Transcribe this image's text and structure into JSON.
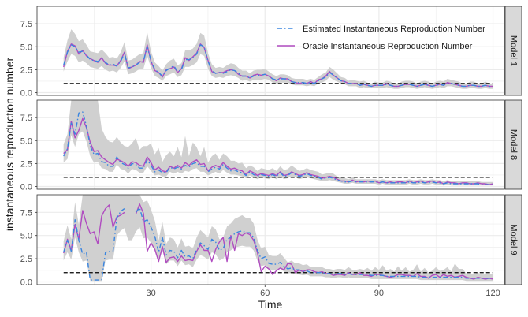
{
  "ylabel": "instantaneous reproduction number",
  "xlabel": "Time",
  "legend": {
    "estimated": "Estimated Instantaneous Reproduction Number",
    "oracle": "Oracle Instantaneous Reproduction Number"
  },
  "colors": {
    "estimated": "#3a85e0",
    "oracle": "#b04cc0",
    "band": "#d0d0d0",
    "reference": "#000000",
    "strip": "#d9d9d9",
    "grid": "#ebebeb"
  },
  "chart_data": [
    {
      "type": "line",
      "strip": "Model 1",
      "xlim": [
        0,
        123
      ],
      "ylim": [
        -0.3,
        9.4
      ],
      "xticks": [
        30,
        60,
        90,
        120
      ],
      "yticks": [
        0.0,
        2.5,
        5.0,
        7.5
      ],
      "ytick_labels": [
        "0.0",
        "2.5",
        "5.0",
        "7.5"
      ],
      "reference_line": 1.0,
      "x_start": 7,
      "oracle": [
        2.8,
        4.5,
        5.3,
        5.1,
        4.2,
        4.6,
        4.0,
        3.7,
        3.5,
        3.3,
        3.8,
        3.2,
        3.0,
        3.0,
        2.9,
        3.5,
        4.4,
        2.6,
        2.8,
        3.0,
        3.4,
        3.3,
        5.2,
        3.4,
        2.4,
        2.2,
        1.7,
        2.5,
        2.6,
        2.8,
        2.2,
        2.6,
        3.8,
        3.5,
        3.9,
        4.3,
        5.3,
        4.9,
        3.5,
        2.3,
        2.1,
        2.2,
        2.2,
        2.4,
        2.5,
        2.4,
        2.0,
        1.8,
        1.8,
        1.6,
        1.9,
        2.0,
        1.9,
        2.0,
        1.8,
        1.5,
        1.3,
        1.6,
        1.5,
        1.5,
        1.2,
        1.1,
        1.0,
        1.1,
        1.0,
        1.2,
        1.0,
        1.4,
        1.5,
        1.8,
        2.3,
        1.9,
        1.6,
        1.3,
        1.2,
        1.0,
        1.0,
        1.0,
        0.8,
        0.9,
        0.8,
        0.7,
        0.8,
        0.8,
        0.8,
        1.0,
        0.8,
        0.7,
        0.7,
        0.8,
        0.9,
        0.9,
        0.8,
        0.7,
        0.8,
        0.9,
        0.8,
        0.7,
        0.8,
        0.9,
        0.8,
        1.1,
        1.0,
        0.9,
        0.8,
        0.7,
        0.7,
        0.8,
        0.8,
        0.7,
        0.7,
        0.8,
        0.7,
        0.7
      ],
      "estimated": [
        3.0,
        4.4,
        5.2,
        5.0,
        4.4,
        4.5,
        4.1,
        3.6,
        3.5,
        3.4,
        3.7,
        3.3,
        3.0,
        3.1,
        2.9,
        3.4,
        4.3,
        2.7,
        2.8,
        3.0,
        3.3,
        3.4,
        5.0,
        3.5,
        2.5,
        2.2,
        1.8,
        2.4,
        2.7,
        2.9,
        2.3,
        2.5,
        3.6,
        3.6,
        3.8,
        4.2,
        5.2,
        5.0,
        3.4,
        2.4,
        2.1,
        2.2,
        2.1,
        2.3,
        2.5,
        2.4,
        2.1,
        1.8,
        1.8,
        1.6,
        1.8,
        1.9,
        1.9,
        2.0,
        1.8,
        1.5,
        1.4,
        1.5,
        1.5,
        1.5,
        1.2,
        1.1,
        1.1,
        1.1,
        1.0,
        1.1,
        1.0,
        1.3,
        1.5,
        1.7,
        2.2,
        1.9,
        1.6,
        1.3,
        1.2,
        1.0,
        1.0,
        1.0,
        0.8,
        0.9,
        0.8,
        0.7,
        0.8,
        0.8,
        0.8,
        0.9,
        0.8,
        0.7,
        0.7,
        0.8,
        0.9,
        0.9,
        0.8,
        0.7,
        0.8,
        0.9,
        0.8,
        0.7,
        0.8,
        0.9,
        0.8,
        1.0,
        1.0,
        0.9,
        0.8,
        0.7,
        0.7,
        0.8,
        0.8,
        0.7,
        0.7,
        0.8,
        0.7,
        0.7
      ],
      "band_lower": [
        2.3,
        3.4,
        4.2,
        4.0,
        3.3,
        3.5,
        3.2,
        2.8,
        2.7,
        2.6,
        2.9,
        2.5,
        2.3,
        2.4,
        2.2,
        2.7,
        3.4,
        2.0,
        2.1,
        2.3,
        2.6,
        2.6,
        4.0,
        2.7,
        1.8,
        1.6,
        1.3,
        1.8,
        2.0,
        2.2,
        1.7,
        1.9,
        2.8,
        2.8,
        3.0,
        3.3,
        4.2,
        4.0,
        2.6,
        1.8,
        1.6,
        1.7,
        1.6,
        1.8,
        1.9,
        1.8,
        1.6,
        1.3,
        1.4,
        1.2,
        1.4,
        1.4,
        1.4,
        1.5,
        1.4,
        1.1,
        1.0,
        1.1,
        1.1,
        1.1,
        0.9,
        0.8,
        0.8,
        0.8,
        0.7,
        0.8,
        0.7,
        1.0,
        1.1,
        1.3,
        1.7,
        1.4,
        1.2,
        1.0,
        0.9,
        0.7,
        0.7,
        0.7,
        0.5,
        0.6,
        0.5,
        0.5,
        0.5,
        0.5,
        0.5,
        0.6,
        0.5,
        0.4,
        0.4,
        0.5,
        0.6,
        0.6,
        0.5,
        0.4,
        0.5,
        0.6,
        0.5,
        0.4,
        0.5,
        0.6,
        0.5,
        0.7,
        0.7,
        0.6,
        0.5,
        0.4,
        0.4,
        0.5,
        0.5,
        0.4,
        0.4,
        0.5,
        0.4,
        0.4
      ],
      "band_upper": [
        3.8,
        5.7,
        6.9,
        6.4,
        5.6,
        5.8,
        5.2,
        4.5,
        4.4,
        4.3,
        4.7,
        4.3,
        3.8,
        3.9,
        3.7,
        4.4,
        5.5,
        3.5,
        3.6,
        3.9,
        4.2,
        4.3,
        6.6,
        4.5,
        3.3,
        2.9,
        2.4,
        3.1,
        3.5,
        3.7,
        3.0,
        3.2,
        4.6,
        4.6,
        4.8,
        5.3,
        6.5,
        6.2,
        4.3,
        3.1,
        2.7,
        2.8,
        2.7,
        3.0,
        3.2,
        3.1,
        2.7,
        2.4,
        2.4,
        2.1,
        2.4,
        2.5,
        2.5,
        2.6,
        2.3,
        2.0,
        1.8,
        2.0,
        2.0,
        1.9,
        1.6,
        1.5,
        1.5,
        1.5,
        1.4,
        1.5,
        1.4,
        1.7,
        2.0,
        2.2,
        2.8,
        2.5,
        2.1,
        1.7,
        1.6,
        1.3,
        1.4,
        1.3,
        1.2,
        1.3,
        1.1,
        1.0,
        1.2,
        1.1,
        1.1,
        1.3,
        1.2,
        1.0,
        1.0,
        1.2,
        1.3,
        1.3,
        1.2,
        1.0,
        1.2,
        1.3,
        1.2,
        1.0,
        1.2,
        1.3,
        1.2,
        1.5,
        1.4,
        1.3,
        1.2,
        1.0,
        1.0,
        1.2,
        1.2,
        1.0,
        1.0,
        1.2,
        1.0,
        1.0
      ]
    },
    {
      "type": "line",
      "strip": "Model 8",
      "xlim": [
        0,
        123
      ],
      "ylim": [
        -0.3,
        9.4
      ],
      "xticks": [
        30,
        60,
        90,
        120
      ],
      "yticks": [
        0.0,
        2.5,
        5.0,
        7.5
      ],
      "ytick_labels": [
        "0.0",
        "2.5",
        "5.0",
        "7.5"
      ],
      "reference_line": 1.0,
      "x_start": 7,
      "oracle": [
        3.6,
        4.0,
        7.1,
        5.3,
        6.1,
        7.4,
        6.4,
        4.8,
        3.8,
        3.9,
        3.2,
        2.9,
        2.6,
        2.4,
        3.0,
        2.8,
        2.6,
        2.2,
        2.7,
        2.6,
        2.3,
        2.2,
        3.2,
        2.6,
        1.8,
        2.1,
        1.7,
        1.6,
        2.2,
        2.0,
        2.3,
        2.0,
        2.6,
        2.3,
        2.7,
        2.9,
        2.4,
        2.5,
        1.7,
        2.1,
        2.3,
        2.1,
        2.6,
        2.2,
        1.9,
        2.0,
        1.8,
        1.7,
        1.3,
        1.7,
        1.5,
        1.2,
        1.4,
        1.3,
        1.2,
        1.4,
        1.2,
        1.6,
        1.2,
        1.3,
        1.6,
        1.4,
        1.2,
        1.3,
        1.5,
        1.3,
        1.2,
        1.1,
        0.9,
        1.0,
        1.1,
        1.0,
        0.8,
        0.6,
        0.6,
        0.5,
        0.7,
        0.5,
        0.6,
        0.5,
        0.6,
        0.5,
        0.6,
        0.4,
        0.5,
        0.4,
        0.5,
        0.4,
        0.5,
        0.5,
        0.4,
        0.6,
        0.4,
        0.5,
        0.6,
        0.4,
        0.5,
        0.6,
        0.4,
        0.5,
        0.3,
        0.5,
        0.4,
        0.4,
        0.3,
        0.4,
        0.4,
        0.3,
        0.3,
        0.4,
        0.3,
        0.3,
        0.2,
        0.3
      ],
      "estimated": [
        3.3,
        4.1,
        6.9,
        5.7,
        8.0,
        8.1,
        6.6,
        4.4,
        3.5,
        3.6,
        2.7,
        2.6,
        2.2,
        2.2,
        3.2,
        2.6,
        2.4,
        2.0,
        2.5,
        2.4,
        2.0,
        2.0,
        2.9,
        2.3,
        1.6,
        1.8,
        1.5,
        1.5,
        2.1,
        1.9,
        2.1,
        1.9,
        2.3,
        2.1,
        2.5,
        2.6,
        2.2,
        2.2,
        1.6,
        1.9,
        2.1,
        1.9,
        2.4,
        2.0,
        1.7,
        1.8,
        1.6,
        1.5,
        1.2,
        1.6,
        1.3,
        1.1,
        1.3,
        1.2,
        1.1,
        1.3,
        1.1,
        1.5,
        1.1,
        1.2,
        1.5,
        1.3,
        1.1,
        1.2,
        1.4,
        1.2,
        1.1,
        1.0,
        0.8,
        0.9,
        1.0,
        0.9,
        0.7,
        0.6,
        0.5,
        0.5,
        0.6,
        0.5,
        0.5,
        0.5,
        0.5,
        0.5,
        0.5,
        0.4,
        0.5,
        0.4,
        0.4,
        0.4,
        0.4,
        0.4,
        0.4,
        0.5,
        0.4,
        0.4,
        0.5,
        0.4,
        0.4,
        0.5,
        0.4,
        0.4,
        0.3,
        0.4,
        0.3,
        0.3,
        0.3,
        0.3,
        0.3,
        0.3,
        0.3,
        0.3,
        0.2,
        0.2,
        0.2,
        0.2
      ],
      "band_lower": [
        2.6,
        3.0,
        5.6,
        4.3,
        5.7,
        6.0,
        4.9,
        3.3,
        2.6,
        2.7,
        2.0,
        1.9,
        1.6,
        1.6,
        2.4,
        1.9,
        1.8,
        1.4,
        1.9,
        1.8,
        1.5,
        1.5,
        2.2,
        1.7,
        1.2,
        1.3,
        1.1,
        1.1,
        1.6,
        1.4,
        1.6,
        1.4,
        1.7,
        1.6,
        1.9,
        2.0,
        1.6,
        1.6,
        1.2,
        1.4,
        1.6,
        1.4,
        1.8,
        1.5,
        1.3,
        1.3,
        1.2,
        1.1,
        0.9,
        1.2,
        1.0,
        0.8,
        1.0,
        0.9,
        0.8,
        1.0,
        0.8,
        1.1,
        0.8,
        0.9,
        1.1,
        1.0,
        0.8,
        0.9,
        1.0,
        0.9,
        0.8,
        0.7,
        0.6,
        0.6,
        0.7,
        0.6,
        0.5,
        0.4,
        0.3,
        0.3,
        0.4,
        0.3,
        0.3,
        0.3,
        0.3,
        0.3,
        0.3,
        0.2,
        0.3,
        0.2,
        0.2,
        0.2,
        0.2,
        0.2,
        0.2,
        0.3,
        0.2,
        0.2,
        0.3,
        0.2,
        0.2,
        0.3,
        0.2,
        0.2,
        0.1,
        0.2,
        0.1,
        0.1,
        0.1,
        0.1,
        0.1,
        0.1,
        0.1,
        0.1,
        0.1,
        0.1,
        0.1,
        0.1
      ],
      "band_upper": [
        4.6,
        5.7,
        9.4,
        9.4,
        9.4,
        9.4,
        9.4,
        9.4,
        9.4,
        9.4,
        6.3,
        5.4,
        4.9,
        4.8,
        5.4,
        4.8,
        4.4,
        4.3,
        4.7,
        5.3,
        4.0,
        4.4,
        4.4,
        4.7,
        3.5,
        4.2,
        2.7,
        3.4,
        3.8,
        3.3,
        4.3,
        3.2,
        5.5,
        3.3,
        4.8,
        4.3,
        3.3,
        4.3,
        2.6,
        3.3,
        3.6,
        2.9,
        3.6,
        3.3,
        2.8,
        2.8,
        2.5,
        2.6,
        2.0,
        2.3,
        2.1,
        1.7,
        2.0,
        1.9,
        1.8,
        2.0,
        1.7,
        2.2,
        1.8,
        1.9,
        2.3,
        2.0,
        1.7,
        1.8,
        2.0,
        1.8,
        1.7,
        1.6,
        1.3,
        1.4,
        1.5,
        1.4,
        1.1,
        1.0,
        0.9,
        0.8,
        1.0,
        0.8,
        0.8,
        0.8,
        0.8,
        0.8,
        0.8,
        0.7,
        0.8,
        0.7,
        0.7,
        0.7,
        0.7,
        0.7,
        0.7,
        0.8,
        0.7,
        0.7,
        0.8,
        0.7,
        0.7,
        0.8,
        0.7,
        0.7,
        0.6,
        0.7,
        0.6,
        0.6,
        0.6,
        0.6,
        0.6,
        0.6,
        0.6,
        0.6,
        0.5,
        0.5,
        0.5,
        0.5
      ]
    },
    {
      "type": "line",
      "strip": "Model 9",
      "xlim": [
        0,
        123
      ],
      "ylim": [
        -0.3,
        9.4
      ],
      "xticks": [
        30,
        60,
        90,
        120
      ],
      "yticks": [
        0.0,
        2.5,
        5.0,
        7.5
      ],
      "ytick_labels": [
        "0.0",
        "2.5",
        "5.0",
        "7.5"
      ],
      "reference_line": 1.0,
      "x_start": 7,
      "oracle": [
        3.1,
        4.6,
        3.4,
        6.2,
        4.6,
        7.7,
        6.3,
        5.2,
        5.4,
        4.1,
        7.1,
        7.9,
        8.3,
        5.9,
        7.0,
        7.2,
        7.5,
        null,
        null,
        7.3,
        8.4,
        7.4,
        3.3,
        4.2,
        3.5,
        2.2,
        3.8,
        2.1,
        2.6,
        2.7,
        2.2,
        2.8,
        2.3,
        2.4,
        2.3,
        3.3,
        4.0,
        3.4,
        3.4,
        2.2,
        3.5,
        4.3,
        4.8,
        2.2,
        5.0,
        3.4,
        5.2,
        5.0,
        5.3,
        5.1,
        4.5,
        3.2,
        1.1,
        1.7,
        1.4,
        0.8,
        1.2,
        1.5,
        1.3,
        2.0,
        1.9,
        1.0,
        1.3,
        1.1,
        1.3,
        1.3,
        1.1,
        1.0,
        1.1,
        0.9,
        0.9,
        0.7,
        0.8,
        0.8,
        0.7,
        1.0,
        0.8,
        0.8,
        1.0,
        0.7,
        0.7,
        0.6,
        0.8,
        0.8,
        0.7,
        0.6,
        0.5,
        0.6,
        0.8,
        0.8,
        0.7,
        0.7,
        0.6,
        0.9,
        0.6,
        0.6,
        0.4,
        0.7,
        0.8,
        0.5,
        0.8,
        0.6,
        0.7,
        0.5,
        0.6,
        0.7,
        0.5,
        0.4,
        0.3,
        0.5,
        0.4,
        0.3,
        0.4,
        0.3
      ],
      "estimated": [
        3.2,
        4.5,
        3.3,
        6.7,
        4.5,
        3.0,
        3.2,
        0.2,
        0.2,
        0.2,
        0.2,
        3.2,
        3.3,
        3.3,
        6.9,
        7.6,
        7.9,
        null,
        null,
        7.5,
        8.0,
        6.5,
        6.7,
        5.9,
        4.9,
        3.2,
        4.8,
        2.9,
        3.4,
        3.3,
        2.6,
        3.4,
        2.7,
        2.8,
        2.5,
        3.5,
        4.2,
        3.9,
        3.5,
        4.6,
        4.3,
        3.4,
        3.6,
        4.6,
        4.8,
        5.2,
        5.4,
        5.5,
        5.3,
        5.3,
        4.8,
        3.4,
        2.5,
        2.7,
        2.0,
        1.9,
        1.9,
        2.1,
        1.7,
        1.4,
        1.5,
        1.3,
        1.3,
        1.1,
        1.2,
        1.0,
        1.0,
        1.0,
        1.0,
        0.9,
        0.9,
        0.8,
        0.9,
        0.9,
        0.8,
        0.9,
        0.8,
        0.8,
        0.8,
        0.8,
        0.8,
        0.7,
        0.7,
        0.7,
        0.7,
        0.6,
        0.6,
        0.6,
        0.6,
        0.6,
        0.6,
        0.6,
        0.6,
        0.6,
        0.5,
        0.5,
        0.5,
        0.5,
        0.5,
        0.5,
        0.5,
        0.5,
        0.5,
        0.5,
        0.5,
        0.5,
        0.4,
        0.4,
        0.4,
        0.4,
        0.4,
        0.4,
        0.4,
        0.4
      ],
      "band_lower": [
        2.3,
        3.2,
        2.4,
        4.8,
        3.2,
        2.2,
        2.3,
        0.1,
        0.1,
        0.1,
        0.1,
        2.3,
        2.4,
        2.4,
        5.0,
        5.5,
        5.8,
        4.5,
        4.5,
        5.4,
        5.9,
        4.7,
        4.8,
        4.2,
        3.5,
        2.2,
        3.4,
        1.9,
        2.3,
        2.3,
        1.7,
        2.3,
        1.8,
        1.9,
        1.6,
        2.4,
        2.9,
        2.7,
        2.4,
        3.2,
        3.0,
        2.3,
        2.5,
        3.2,
        3.4,
        3.7,
        3.8,
        3.9,
        3.8,
        3.8,
        3.4,
        2.3,
        1.7,
        1.8,
        1.3,
        1.3,
        1.3,
        1.4,
        1.1,
        0.9,
        1.0,
        0.8,
        0.8,
        0.7,
        0.8,
        0.6,
        0.6,
        0.6,
        0.6,
        0.5,
        0.5,
        0.4,
        0.5,
        0.5,
        0.4,
        0.5,
        0.4,
        0.4,
        0.4,
        0.4,
        0.4,
        0.3,
        0.3,
        0.3,
        0.3,
        0.3,
        0.3,
        0.3,
        0.3,
        0.3,
        0.3,
        0.3,
        0.3,
        0.3,
        0.2,
        0.2,
        0.2,
        0.2,
        0.2,
        0.2,
        0.2,
        0.2,
        0.2,
        0.2,
        0.2,
        0.2,
        0.1,
        0.1,
        0.1,
        0.1,
        0.1,
        0.1,
        0.1,
        0.1
      ],
      "band_upper": [
        4.4,
        6.1,
        4.6,
        8.6,
        6.2,
        9.4,
        9.4,
        9.4,
        9.4,
        9.4,
        9.4,
        9.4,
        9.4,
        9.4,
        9.4,
        9.4,
        9.4,
        9.4,
        9.4,
        9.4,
        9.4,
        8.6,
        8.8,
        7.8,
        6.6,
        4.5,
        6.5,
        4.1,
        4.8,
        4.6,
        3.7,
        4.7,
        3.8,
        3.9,
        3.6,
        4.8,
        5.6,
        5.2,
        4.8,
        6.0,
        5.7,
        4.6,
        4.8,
        6.0,
        6.3,
        6.8,
        7.0,
        7.2,
        6.9,
        6.9,
        6.3,
        4.6,
        3.6,
        3.8,
        2.9,
        2.8,
        2.8,
        3.1,
        2.6,
        2.1,
        2.3,
        2.0,
        2.0,
        1.8,
        1.9,
        1.6,
        1.6,
        1.6,
        1.6,
        1.4,
        1.4,
        1.3,
        1.4,
        1.4,
        1.3,
        1.6,
        1.3,
        1.3,
        1.4,
        1.3,
        1.5,
        1.2,
        1.6,
        1.3,
        1.8,
        1.2,
        1.4,
        1.1,
        1.7,
        1.2,
        1.6,
        1.1,
        1.3,
        1.9,
        1.1,
        1.5,
        1.0,
        1.2,
        1.6,
        1.2,
        1.3,
        1.6,
        1.1,
        2.0,
        1.4,
        1.4,
        0.9,
        0.9,
        0.8,
        1.0,
        0.8,
        0.8,
        0.9,
        0.8
      ]
    }
  ]
}
